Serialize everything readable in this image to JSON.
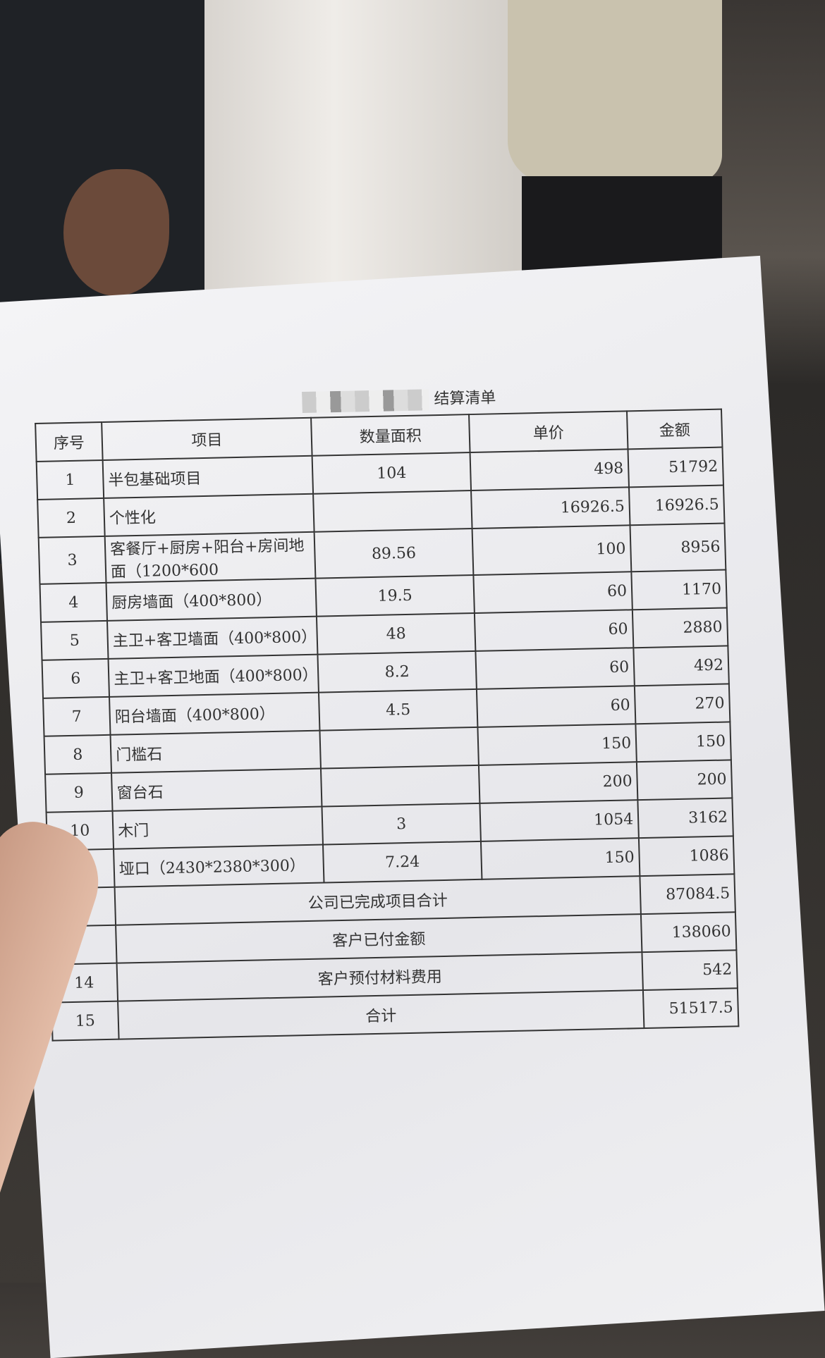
{
  "document": {
    "title": "结算清单",
    "headers": {
      "seq": "序号",
      "item": "项目",
      "qty": "数量面积",
      "price": "单价",
      "amount": "金额"
    },
    "rows": [
      {
        "seq": "1",
        "item": "半包基础项目",
        "qty": "104",
        "price": "498",
        "amount": "51792"
      },
      {
        "seq": "2",
        "item": "个性化",
        "qty": "",
        "price": "16926.5",
        "amount": "16926.5"
      },
      {
        "seq": "3",
        "item": "客餐厅+厨房+阳台+房间地面（1200*600",
        "qty": "89.56",
        "price": "100",
        "amount": "8956"
      },
      {
        "seq": "4",
        "item": "厨房墙面（400*800）",
        "qty": "19.5",
        "price": "60",
        "amount": "1170"
      },
      {
        "seq": "5",
        "item": "主卫+客卫墙面（400*800）",
        "qty": "48",
        "price": "60",
        "amount": "2880"
      },
      {
        "seq": "6",
        "item": "主卫+客卫地面（400*800）",
        "qty": "8.2",
        "price": "60",
        "amount": "492"
      },
      {
        "seq": "7",
        "item": "阳台墙面（400*800）",
        "qty": "4.5",
        "price": "60",
        "amount": "270"
      },
      {
        "seq": "8",
        "item": "门槛石",
        "qty": "",
        "price": "150",
        "amount": "150"
      },
      {
        "seq": "9",
        "item": "窗台石",
        "qty": "",
        "price": "200",
        "amount": "200"
      },
      {
        "seq": "10",
        "item": "木门",
        "qty": "3",
        "price": "1054",
        "amount": "3162"
      },
      {
        "seq": "",
        "item": "垭口（2430*2380*300）",
        "qty": "7.24",
        "price": "150",
        "amount": "1086"
      }
    ],
    "summary": [
      {
        "seq": "",
        "label": "公司已完成项目合计",
        "amount": "87084.5"
      },
      {
        "seq": "",
        "label": "客户已付金额",
        "amount": "138060"
      },
      {
        "seq": "14",
        "label": "客户预付材料费用",
        "amount": "542"
      },
      {
        "seq": "15",
        "label": "合计",
        "amount": "51517.5"
      }
    ]
  }
}
